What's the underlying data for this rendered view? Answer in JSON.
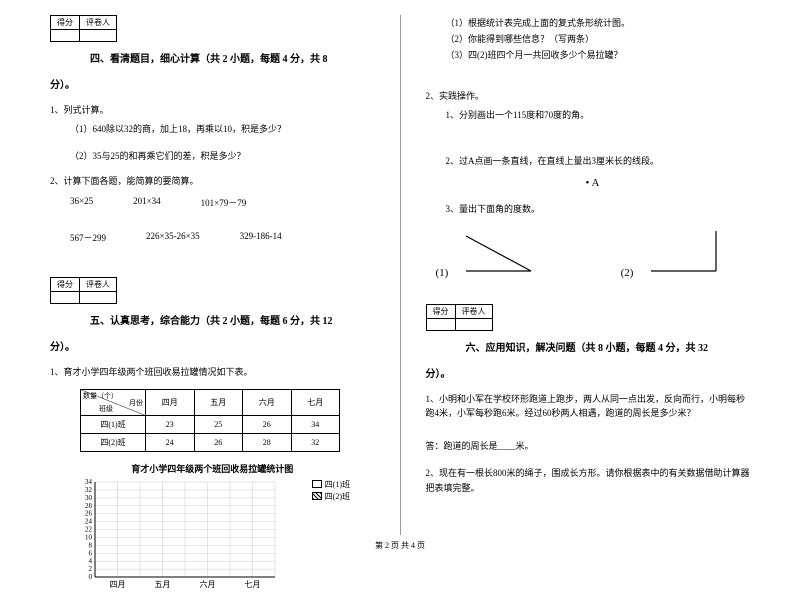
{
  "scoreHeaders": {
    "score": "得分",
    "grader": "评卷人"
  },
  "section4": {
    "title": "四、看清题目，细心计算（共 2 小题，每题 4 分，共 8",
    "titleEnd": "分）。",
    "q1": "1、列式计算。",
    "q1_1": "（1）640除以32的商，加上18，再乘以10，积是多少？",
    "q1_2": "（2）35与25的和再乘它们的差，积是多少？",
    "q2": "2、计算下面各题，能简算的要简算。",
    "calc1": [
      "36×25",
      "201×34",
      "101×79－79"
    ],
    "calc2": [
      "567－299",
      "226×35-26×35",
      "329-186-14"
    ]
  },
  "section5": {
    "title": "五、认真思考，综合能力（共 2 小题，每题 6 分，共 12",
    "titleEnd": "分）。",
    "q1": "1、育才小学四年级两个班回收易拉罐情况如下表。",
    "tableHeader": {
      "diag1": "数量（个）",
      "diag2": "班级",
      "diag3": "月份"
    },
    "months": [
      "四月",
      "五月",
      "六月",
      "七月"
    ],
    "classes": [
      "四(1)班",
      "四(2)班"
    ],
    "data": [
      [
        23,
        25,
        26,
        34
      ],
      [
        24,
        26,
        28,
        32
      ]
    ],
    "chartTitle": "育才小学四年级两个班回收易拉罐统计图",
    "legend": [
      "四(1)班",
      "四(2)班"
    ],
    "yticks": [
      34,
      32,
      30,
      28,
      26,
      24,
      22,
      10,
      8,
      6,
      4,
      2,
      0
    ],
    "axisColor": "#000000",
    "gridColor": "#cccccc"
  },
  "rightTop": {
    "r1": "（1）根据统计表完成上面的复式条形统计图。",
    "r2": "（2）你能得到哪些信息？（写两条）",
    "r3": "（3）四(2)班四个月一共回收多少个易拉罐？"
  },
  "q2r": {
    "title": "2、实践操作。",
    "s1": "1、分别画出一个115度和70度的角。",
    "s2": "2、过A点画一条直线，在直线上量出3厘米长的线段。",
    "pointA": "• A",
    "s3": "3、量出下面角的度数。",
    "a1": "(1)",
    "a2": "(2)"
  },
  "section6": {
    "title": "六、应用知识，解决问题（共 8 小题，每题 4 分，共 32",
    "titleEnd": "分）。",
    "q1": "1、小明和小军在学校环形跑道上跑步，两人从同一点出发，反向而行，小明每秒跑4米，小军每秒跑6米。经过60秒两人相遇，跑道的周长是多少米？",
    "ans1": "答：跑道的周长是____米。",
    "q2": "2、现在有一根长800米的绳子，围成长方形。请你根据表中的有关数据借助计算器把表填完整。"
  },
  "footer": "第 2 页 共 4 页"
}
